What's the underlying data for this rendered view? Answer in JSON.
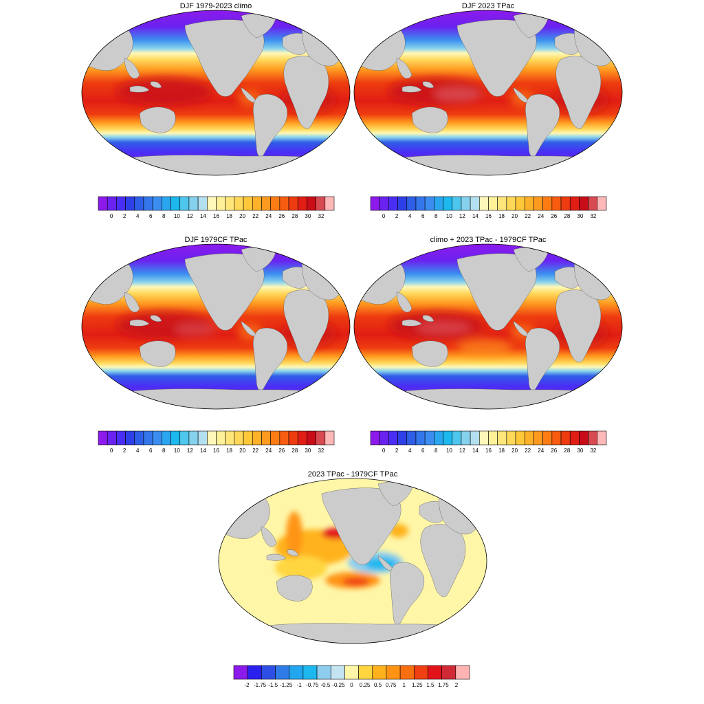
{
  "panels": [
    {
      "title": "DJF 1979-2023 climo",
      "field": "sst",
      "variant": 0
    },
    {
      "title": "DJF 2023 TPac",
      "field": "sst",
      "variant": 1
    },
    {
      "title": "DJF 1979CF TPac",
      "field": "sst",
      "variant": 2
    },
    {
      "title": "climo + 2023 TPac - 1979CF TPac",
      "field": "sst",
      "variant": 3
    },
    {
      "title": "2023 TPac - 1979CF TPac",
      "field": "diff",
      "variant": 0
    }
  ],
  "colorbars": [
    {
      "id": "sst-1",
      "labels": [
        "0",
        "2",
        "4",
        "6",
        "8",
        "10",
        "12",
        "14",
        "16",
        "18",
        "20",
        "22",
        "24",
        "26",
        "28",
        "30",
        "32"
      ]
    },
    {
      "id": "sst-2",
      "labels": [
        "0",
        "2",
        "4",
        "6",
        "8",
        "10",
        "12",
        "14",
        "16",
        "18",
        "20",
        "22",
        "24",
        "26",
        "28",
        "30",
        "32"
      ]
    },
    {
      "id": "sst-3",
      "labels": [
        "0",
        "2",
        "4",
        "6",
        "8",
        "10",
        "12",
        "14",
        "16",
        "18",
        "20",
        "22",
        "24",
        "26",
        "28",
        "30",
        "32"
      ]
    },
    {
      "id": "sst-4",
      "labels": [
        "0",
        "2",
        "4",
        "6",
        "8",
        "10",
        "12",
        "14",
        "16",
        "18",
        "20",
        "22",
        "24",
        "26",
        "28",
        "30",
        "32"
      ]
    },
    {
      "id": "diff",
      "labels": [
        "-2",
        "-1.75",
        "-1.5",
        "-1.25",
        "-1",
        "-0.75",
        "-0.5",
        "-0.25",
        "0",
        "0.25",
        "0.5",
        "0.75",
        "1",
        "1.25",
        "1.5",
        "1.75",
        "2"
      ]
    }
  ],
  "colors": {
    "land": "#cccccc",
    "sst_palette": [
      "#8c1aeb",
      "#6a22f0",
      "#4a2ef5",
      "#2f3fe8",
      "#2f5ee6",
      "#3477ec",
      "#3b8ef0",
      "#2aa6f0",
      "#1cb8ee",
      "#4fc6ee",
      "#86d2ee",
      "#b3e0f0",
      "#fff8b8",
      "#fff09a",
      "#ffe57a",
      "#ffd85a",
      "#ffc83a",
      "#ffb12a",
      "#ff9a20",
      "#ff7c14",
      "#f85c10",
      "#ee3c10",
      "#e01e14",
      "#c80c18",
      "#d84a52",
      "#ffb8b8"
    ],
    "diff_palette": [
      "#8c1aeb",
      "#2a20f0",
      "#2d4fe6",
      "#2f7ce8",
      "#22a6f0",
      "#1cb8ee",
      "#8ecdee",
      "#c4e4f2",
      "#fff6a8",
      "#ffd640",
      "#ffb21c",
      "#ff9414",
      "#f86f10",
      "#ef4012",
      "#e2141a",
      "#cf2a36",
      "#ffb3b3"
    ]
  }
}
